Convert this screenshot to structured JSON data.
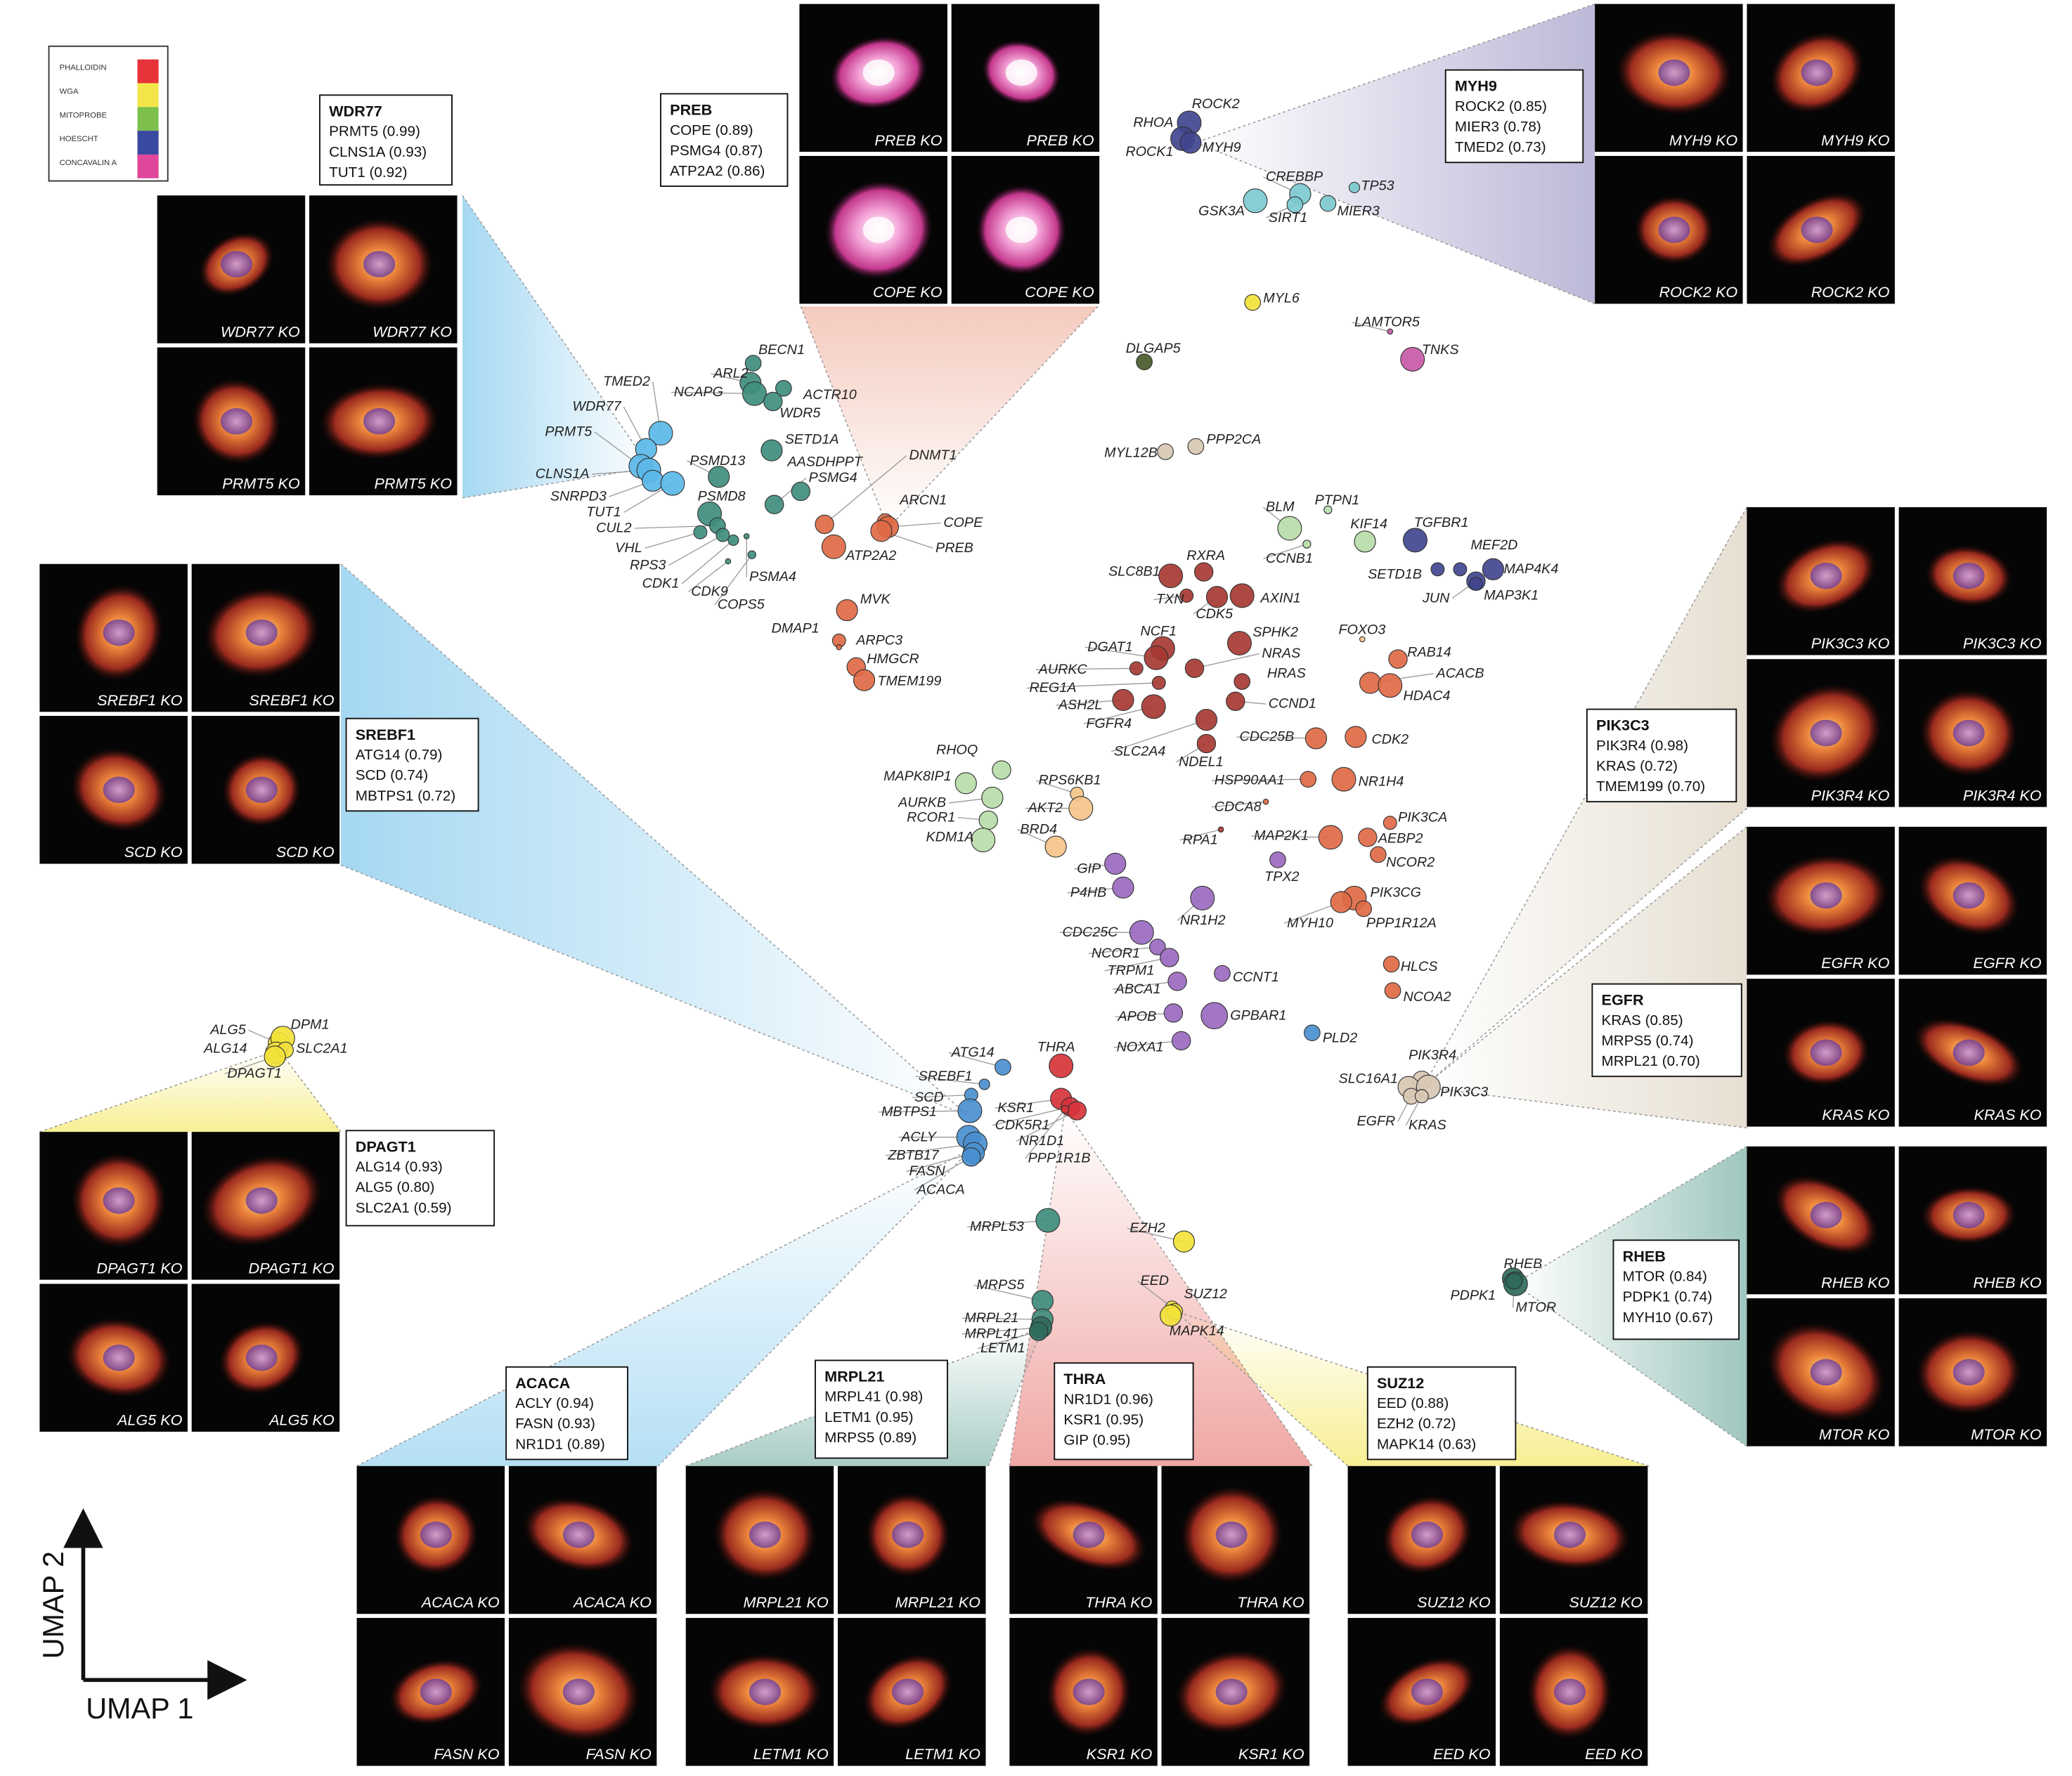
{
  "legend": [
    {
      "label": "PHALLOIDIN",
      "color": "#e8333a"
    },
    {
      "label": "WGA",
      "color": "#f4e64a"
    },
    {
      "label": "MITOPROBE",
      "color": "#7cc04b"
    },
    {
      "label": "HOESCHT",
      "color": "#3a49a0"
    },
    {
      "label": "CONCAVALIN A",
      "color": "#e0479a"
    }
  ],
  "axes": {
    "x_label": "UMAP 1",
    "y_label": "UMAP 2"
  },
  "cluster_colors": {
    "teal": "#3f8e7e",
    "lightblue": "#5bb8e8",
    "orange": "#e06a45",
    "darkred": "#a63a32",
    "purple": "#9b6ac0",
    "navy": "#41458f",
    "cyan": "#7ccad0",
    "yellow": "#f2e23a",
    "lightgreen": "#b8dca8",
    "peach": "#f5c48a",
    "tan": "#d8c8b4",
    "blue": "#4a90d0",
    "red": "#d6343a",
    "darkgreen": "#2f6b5c",
    "magenta": "#c85aa8",
    "olive": "#4a5a2a"
  },
  "gene_labels": [
    "ROCK2",
    "RHOA",
    "ROCK1",
    "MYH9",
    "CREBBP",
    "TP53",
    "GSK3A",
    "SIRT1",
    "MIER3",
    "MYL6",
    "LAMTOR5",
    "DLGAP5",
    "TNKS",
    "MYL12B",
    "PPP2CA",
    "BECN1",
    "ARL2",
    "NCAPG",
    "ACTR10",
    "WDR5",
    "TMED2",
    "WDR77",
    "PRMT5",
    "SETD1A",
    "AASDHPPT",
    "PSMD13",
    "PSMG4",
    "DNMT1",
    "CLNS1A",
    "SNRPD3",
    "PSMD8",
    "ARCN1",
    "COPE",
    "TUT1",
    "CUL2",
    "VHL",
    "RPS3",
    "CDK1",
    "CDK9",
    "COPS5",
    "PSMA4",
    "ATP2A2",
    "PREB",
    "BLM",
    "PTPN1",
    "KIF14",
    "TGFBR1",
    "CCNB1",
    "MEF2D",
    "SETD1B",
    "MAP4K4",
    "JUN",
    "MAP3K1",
    "SLC8B1",
    "RXRA",
    "TXN",
    "CDK5",
    "AXIN1",
    "MVK",
    "DMAP1",
    "ARPC3",
    "HMGCR",
    "TMEM199",
    "NCF1",
    "DGAT1",
    "AURKC",
    "REG1A",
    "ASH2L",
    "FGFR4",
    "SPHK2",
    "NRAS",
    "HRAS",
    "CCND1",
    "FOXO3",
    "RAB14",
    "ACACB",
    "HDAC4",
    "CDC25B",
    "CDK2",
    "SLC2A4",
    "NDEL1",
    "RHOQ",
    "MAPK8IP1",
    "AURKB",
    "RCOR1",
    "KDM1A",
    "RPS6KB1",
    "AKT2",
    "BRD4",
    "HSP90AA1",
    "CDCA8",
    "NR1H4",
    "PIK3CA",
    "AEBP2",
    "NCOR2",
    "RPA1",
    "MAP2K1",
    "TPX2",
    "GIP",
    "P4HB",
    "NR1H2",
    "PIK3CG",
    "MYH10",
    "PPP1R12A",
    "CDC25C",
    "NCOR1",
    "TRPM1",
    "ABCA1",
    "CCNT1",
    "HLCS",
    "NCOA2",
    "APOB",
    "GPBAR1",
    "NOXA1",
    "PLD2",
    "PIK3R4",
    "SLC16A1",
    "PIK3C3",
    "EGFR",
    "KRAS",
    "ALG5",
    "DPM1",
    "ALG14",
    "SLC2A1",
    "DPAGT1",
    "ATG14",
    "SREBF1",
    "SCD",
    "MBTPS1",
    "ACLY",
    "ZBTB17",
    "FASN",
    "ACACA",
    "THRA",
    "KSR1",
    "CDK5R1",
    "NR1D1",
    "PPP1R1B",
    "MRPL53",
    "MRPS5",
    "MRPL21",
    "MRPL41",
    "LETM1",
    "EZH2",
    "EED",
    "SUZ12",
    "MAPK14",
    "RHEB",
    "PDPK1",
    "MTOR"
  ],
  "boxes": [
    {
      "title": "WDR77",
      "lines": [
        "PRMT5 (0.99)",
        "CLNS1A (0.93)",
        "TUT1 (0.92)"
      ]
    },
    {
      "title": "PREB",
      "lines": [
        "COPE (0.89)",
        "PSMG4 (0.87)",
        "ATP2A2 (0.86)"
      ]
    },
    {
      "title": "MYH9",
      "lines": [
        "ROCK2 (0.85)",
        "MIER3 (0.78)",
        "TMED2 (0.73)"
      ]
    },
    {
      "title": "SREBF1",
      "lines": [
        "ATG14 (0.79)",
        "SCD (0.74)",
        "MBTPS1 (0.72)"
      ]
    },
    {
      "title": "PIK3C3",
      "lines": [
        "PIK3R4 (0.98)",
        "KRAS (0.72)",
        "TMEM199 (0.70)"
      ]
    },
    {
      "title": "EGFR",
      "lines": [
        "KRAS (0.85)",
        "MRPS5 (0.74)",
        "MRPL21 (0.70)"
      ]
    },
    {
      "title": "DPAGT1",
      "lines": [
        "ALG14 (0.93)",
        "ALG5 (0.80)",
        "SLC2A1 (0.59)"
      ]
    },
    {
      "title": "RHEB",
      "lines": [
        "MTOR (0.84)",
        "PDPK1 (0.74)",
        "MYH10 (0.67)"
      ]
    },
    {
      "title": "ACACA",
      "lines": [
        "ACLY (0.94)",
        "FASN (0.93)",
        "NR1D1 (0.89)"
      ]
    },
    {
      "title": "MRPL21",
      "lines": [
        "MRPL41 (0.98)",
        "LETM1 (0.95)",
        "MRPS5 (0.89)"
      ]
    },
    {
      "title": "THRA",
      "lines": [
        "NR1D1 (0.96)",
        "KSR1 (0.95)",
        "GIP (0.95)"
      ]
    },
    {
      "title": "SUZ12",
      "lines": [
        "EED (0.88)",
        "EZH2 (0.72)",
        "MAPK14 (0.63)"
      ]
    }
  ],
  "panels": [
    {
      "tiles": [
        "WDR77 KO",
        "WDR77 KO",
        "PRMT5 KO",
        "PRMT5 KO"
      ]
    },
    {
      "tiles": [
        "PREB KO",
        "PREB KO",
        "COPE KO",
        "COPE KO"
      ]
    },
    {
      "tiles": [
        "MYH9 KO",
        "MYH9 KO",
        "ROCK2 KO",
        "ROCK2 KO"
      ]
    },
    {
      "tiles": [
        "SREBF1 KO",
        "SREBF1 KO",
        "SCD KO",
        "SCD KO"
      ]
    },
    {
      "tiles": [
        "PIK3C3 KO",
        "PIK3C3 KO",
        "PIK3R4 KO",
        "PIK3R4 KO"
      ]
    },
    {
      "tiles": [
        "EGFR KO",
        "EGFR KO",
        "KRAS KO",
        "KRAS KO"
      ]
    },
    {
      "tiles": [
        "DPAGT1 KO",
        "DPAGT1 KO",
        "ALG5 KO",
        "ALG5 KO"
      ]
    },
    {
      "tiles": [
        "RHEB KO",
        "RHEB KO",
        "MTOR KO",
        "MTOR KO"
      ]
    },
    {
      "tiles": [
        "ACACA KO",
        "ACACA KO",
        "FASN KO",
        "FASN KO"
      ]
    },
    {
      "tiles": [
        "MRPL21 KO",
        "MRPL21 KO",
        "LETM1 KO",
        "LETM1 KO"
      ]
    },
    {
      "tiles": [
        "THRA KO",
        "THRA KO",
        "KSR1 KO",
        "KSR1 KO"
      ]
    },
    {
      "tiles": [
        "SUZ12 KO",
        "SUZ12 KO",
        "EED KO",
        "EED KO"
      ]
    }
  ]
}
